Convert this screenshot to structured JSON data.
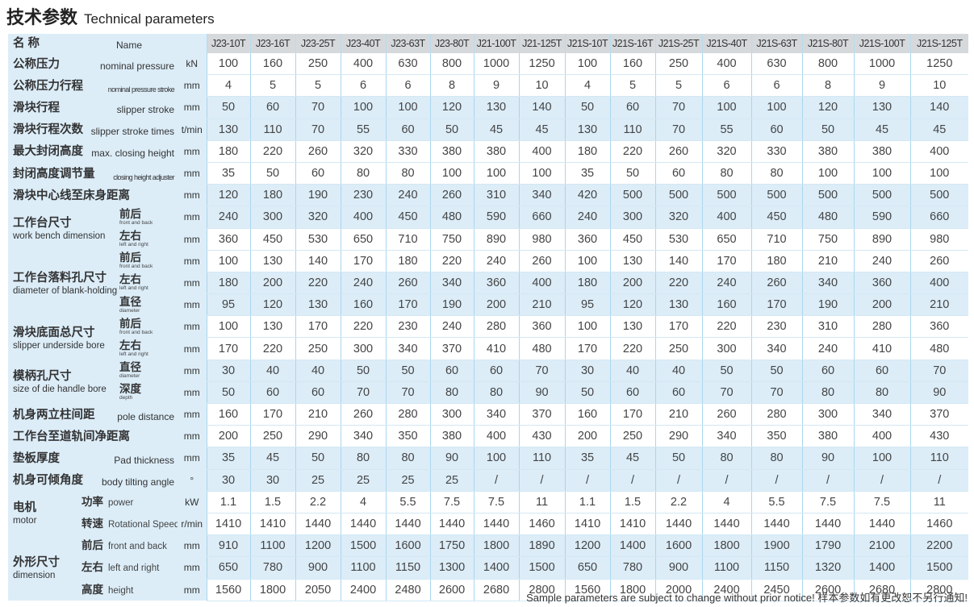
{
  "title": {
    "cn": "技术参数",
    "en": "Technical parameters"
  },
  "header": {
    "cn": "名 称",
    "en": "Name"
  },
  "models": [
    "J23-10T",
    "J23-16T",
    "J23-25T",
    "J23-40T",
    "J23-63T",
    "J23-80T",
    "J21-100T",
    "J21-125T",
    "J21S-10T",
    "J21S-16T",
    "J21S-25T",
    "J21S-40T",
    "J21S-63T",
    "J21S-80T",
    "J21S-100T",
    "J21S-125T"
  ],
  "groups": [
    {
      "cn": "工作台尺寸",
      "en": "work bench dimension",
      "style": "wide"
    },
    {
      "cn": "工作台落料孔尺寸",
      "en": "diameter of blank-holding hole",
      "style": "wide"
    },
    {
      "cn": "滑块底面总尺寸",
      "en": "slipper underside bore",
      "style": "wide"
    },
    {
      "cn": "模柄孔尺寸",
      "en": "size of die handle bore",
      "style": "wide"
    },
    {
      "cn": "电机",
      "en": "motor",
      "style": "narrow"
    },
    {
      "cn": "外形尺寸",
      "en": "dimension",
      "style": "narrow"
    }
  ],
  "rows": [
    {
      "cn": "公称压力",
      "en": "nominal pressure",
      "unit": "kN",
      "values": [
        "100",
        "160",
        "250",
        "400",
        "630",
        "800",
        "1000",
        "1250",
        "100",
        "160",
        "250",
        "400",
        "630",
        "800",
        "1000",
        "1250"
      ]
    },
    {
      "cn": "公称压力行程",
      "en": "nominal pressure stroke",
      "unit": "mm",
      "values": [
        "4",
        "5",
        "5",
        "6",
        "6",
        "8",
        "9",
        "10",
        "4",
        "5",
        "5",
        "6",
        "6",
        "8",
        "9",
        "10"
      ]
    },
    {
      "cn": "滑块行程",
      "en": "slipper stroke",
      "unit": "mm",
      "values": [
        "50",
        "60",
        "70",
        "100",
        "100",
        "120",
        "130",
        "140",
        "50",
        "60",
        "70",
        "100",
        "100",
        "120",
        "130",
        "140"
      ]
    },
    {
      "cn": "滑块行程次数",
      "en": "slipper stroke times",
      "unit": "t/min",
      "values": [
        "130",
        "110",
        "70",
        "55",
        "60",
        "50",
        "45",
        "45",
        "130",
        "110",
        "70",
        "55",
        "60",
        "50",
        "45",
        "45"
      ]
    },
    {
      "cn": "最大封闭高度",
      "en": "max. closing height",
      "unit": "mm",
      "values": [
        "180",
        "220",
        "260",
        "320",
        "330",
        "380",
        "380",
        "400",
        "180",
        "220",
        "260",
        "320",
        "330",
        "380",
        "380",
        "400"
      ]
    },
    {
      "cn": "封闭高度调节量",
      "en": "closing height adjuster",
      "unit": "mm",
      "values": [
        "35",
        "50",
        "60",
        "80",
        "80",
        "100",
        "100",
        "100",
        "35",
        "50",
        "60",
        "80",
        "80",
        "100",
        "100",
        "100"
      ]
    },
    {
      "cn": "滑块中心线至床身距离",
      "en": "",
      "unit": "mm",
      "values": [
        "120",
        "180",
        "190",
        "230",
        "240",
        "260",
        "310",
        "340",
        "420",
        "500",
        "500",
        "500",
        "500",
        "500",
        "500",
        "500"
      ]
    },
    {
      "group": 0,
      "cn": "前后",
      "en": "front and back",
      "unit": "mm",
      "values": [
        "240",
        "300",
        "320",
        "400",
        "450",
        "480",
        "590",
        "660",
        "240",
        "300",
        "320",
        "400",
        "450",
        "480",
        "590",
        "660"
      ]
    },
    {
      "group": 0,
      "cn": "左右",
      "en": "left and right",
      "unit": "mm",
      "values": [
        "360",
        "450",
        "530",
        "650",
        "710",
        "750",
        "890",
        "980",
        "360",
        "450",
        "530",
        "650",
        "710",
        "750",
        "890",
        "980"
      ]
    },
    {
      "group": 1,
      "cn": "前后",
      "en": "front and back",
      "unit": "mm",
      "values": [
        "100",
        "130",
        "140",
        "170",
        "180",
        "220",
        "240",
        "260",
        "100",
        "130",
        "140",
        "170",
        "180",
        "210",
        "240",
        "260"
      ]
    },
    {
      "group": 1,
      "cn": "左右",
      "en": "left and right",
      "unit": "mm",
      "values": [
        "180",
        "200",
        "220",
        "240",
        "260",
        "340",
        "360",
        "400",
        "180",
        "200",
        "220",
        "240",
        "260",
        "340",
        "360",
        "400"
      ]
    },
    {
      "group": 1,
      "cn": "直径",
      "en": "diameter",
      "unit": "mm",
      "values": [
        "95",
        "120",
        "130",
        "160",
        "170",
        "190",
        "200",
        "210",
        "95",
        "120",
        "130",
        "160",
        "170",
        "190",
        "200",
        "210"
      ]
    },
    {
      "group": 2,
      "cn": "前后",
      "en": "front and back",
      "unit": "mm",
      "values": [
        "100",
        "130",
        "170",
        "220",
        "230",
        "240",
        "280",
        "360",
        "100",
        "130",
        "170",
        "220",
        "230",
        "310",
        "280",
        "360"
      ]
    },
    {
      "group": 2,
      "cn": "左右",
      "en": "left and right",
      "unit": "mm",
      "values": [
        "170",
        "220",
        "250",
        "300",
        "340",
        "370",
        "410",
        "480",
        "170",
        "220",
        "250",
        "300",
        "340",
        "240",
        "410",
        "480"
      ]
    },
    {
      "group": 3,
      "cn": "直径",
      "en": "diameter",
      "unit": "mm",
      "values": [
        "30",
        "40",
        "40",
        "50",
        "50",
        "60",
        "60",
        "70",
        "30",
        "40",
        "40",
        "50",
        "50",
        "60",
        "60",
        "70"
      ]
    },
    {
      "group": 3,
      "cn": "深度",
      "en": "depth",
      "unit": "mm",
      "values": [
        "50",
        "60",
        "60",
        "70",
        "70",
        "80",
        "80",
        "90",
        "50",
        "60",
        "60",
        "70",
        "70",
        "80",
        "80",
        "90"
      ]
    },
    {
      "cn": "机身两立柱间距",
      "en": "pole distance",
      "unit": "mm",
      "values": [
        "160",
        "170",
        "210",
        "260",
        "280",
        "300",
        "340",
        "370",
        "160",
        "170",
        "210",
        "260",
        "280",
        "300",
        "340",
        "370"
      ]
    },
    {
      "cn": "工作台至道轨间净距离",
      "en": "",
      "unit": "mm",
      "values": [
        "200",
        "250",
        "290",
        "340",
        "350",
        "380",
        "400",
        "430",
        "200",
        "250",
        "290",
        "340",
        "350",
        "380",
        "400",
        "430"
      ]
    },
    {
      "cn": "垫板厚度",
      "en": "Pad thickness",
      "unit": "mm",
      "values": [
        "35",
        "45",
        "50",
        "80",
        "80",
        "90",
        "100",
        "110",
        "35",
        "45",
        "50",
        "80",
        "80",
        "90",
        "100",
        "110"
      ]
    },
    {
      "cn": "机身可倾角度",
      "en": "body tilting angle",
      "unit": "°",
      "values": [
        "30",
        "30",
        "25",
        "25",
        "25",
        "25",
        "/",
        "/",
        "/",
        "/",
        "/",
        "/",
        "/",
        "/",
        "/",
        "/"
      ]
    },
    {
      "group": 4,
      "cn": "功率",
      "en": "power",
      "unit": "kW",
      "values": [
        "1.1",
        "1.5",
        "2.2",
        "4",
        "5.5",
        "7.5",
        "7.5",
        "11",
        "1.1",
        "1.5",
        "2.2",
        "4",
        "5.5",
        "7.5",
        "7.5",
        "11"
      ]
    },
    {
      "group": 4,
      "cn": "转速",
      "en": "Rotational Speed",
      "unit": "r/min",
      "values": [
        "1410",
        "1410",
        "1440",
        "1440",
        "1440",
        "1440",
        "1440",
        "1460",
        "1410",
        "1410",
        "1440",
        "1440",
        "1440",
        "1440",
        "1440",
        "1460"
      ]
    },
    {
      "group": 5,
      "cn": "前后",
      "en": "front and back",
      "unit": "mm",
      "values": [
        "910",
        "1100",
        "1200",
        "1500",
        "1600",
        "1750",
        "1800",
        "1890",
        "1200",
        "1400",
        "1600",
        "1800",
        "1900",
        "1790",
        "2100",
        "2200"
      ]
    },
    {
      "group": 5,
      "cn": "左右",
      "en": "left and right",
      "unit": "mm",
      "values": [
        "650",
        "780",
        "900",
        "1100",
        "1150",
        "1300",
        "1400",
        "1500",
        "650",
        "780",
        "900",
        "1100",
        "1150",
        "1320",
        "1400",
        "1500"
      ]
    },
    {
      "group": 5,
      "cn": "高度",
      "en": "height",
      "unit": "mm",
      "values": [
        "1560",
        "1800",
        "2050",
        "2400",
        "2480",
        "2600",
        "2680",
        "2800",
        "1560",
        "1800",
        "2000",
        "2400",
        "2450",
        "2600",
        "2680",
        "2800"
      ]
    }
  ],
  "footer": "Sample parameters are subject to change without prior notice!  样本参数如有更改恕不另行通知!",
  "colors": {
    "label_bg": "#dcedf8",
    "band_bg": "#dcedf8",
    "header_bg": "#d6d9dc",
    "grid": "#a9d6ee"
  }
}
